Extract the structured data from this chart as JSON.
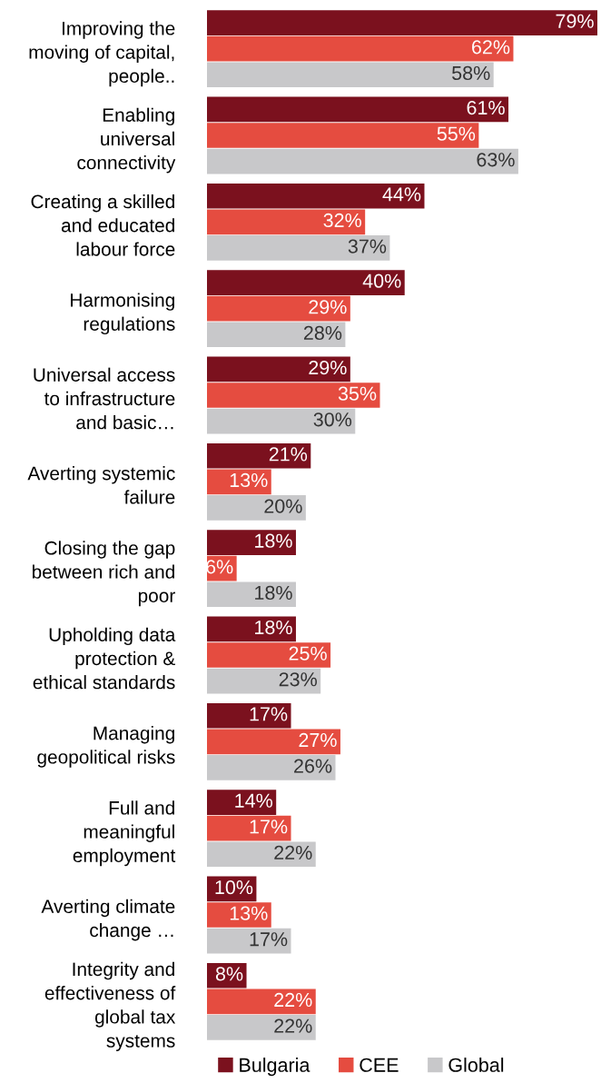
{
  "chart_data": {
    "type": "bar",
    "orientation": "horizontal",
    "legend": "bottom",
    "grid": false,
    "categories": [
      "Improving the\nmoving of capital,\npeople..",
      "Enabling\nuniversal\nconnectivity",
      "Creating a skilled\nand educated\nlabour force",
      "Harmonising\nregulations",
      "Universal access\nto infrastructure\nand basic…",
      "Averting systemic\nfailure",
      "Closing the gap\nbetween rich and\npoor",
      "Upholding data\nprotection &\nethical standards",
      "Managing\ngeopolitical risks",
      "Full and\nmeaningful\nemployment",
      "Averting climate\nchange …",
      "Integrity and\neffectiveness of\nglobal tax\nsystems"
    ],
    "series": [
      {
        "name": "Bulgaria",
        "color": "#7b111e",
        "values": [
          79,
          61,
          44,
          40,
          29,
          21,
          18,
          18,
          17,
          14,
          10,
          8
        ],
        "value_labels": [
          "79%",
          "61%",
          "44%",
          "40%",
          "29%",
          "21%",
          "18%",
          "18%",
          "17%",
          "14%",
          "10%",
          "8%"
        ]
      },
      {
        "name": "CEE",
        "color": "#e54c40",
        "values": [
          62,
          55,
          32,
          29,
          35,
          13,
          6,
          25,
          27,
          17,
          13,
          22
        ],
        "value_labels": [
          "62%",
          "55%",
          "32%",
          "29%",
          "35%",
          "13%",
          "6%",
          "25%",
          "27%",
          "17%",
          "13%",
          "22%"
        ]
      },
      {
        "name": "Global",
        "color": "#c8c8ca",
        "values": [
          58,
          63,
          37,
          28,
          30,
          20,
          18,
          23,
          26,
          22,
          17,
          22
        ],
        "value_labels": [
          "58%",
          "63%",
          "37%",
          "28%",
          "30%",
          "20%",
          "18%",
          "23%",
          "26%",
          "22%",
          "17%",
          "22%"
        ]
      }
    ]
  }
}
